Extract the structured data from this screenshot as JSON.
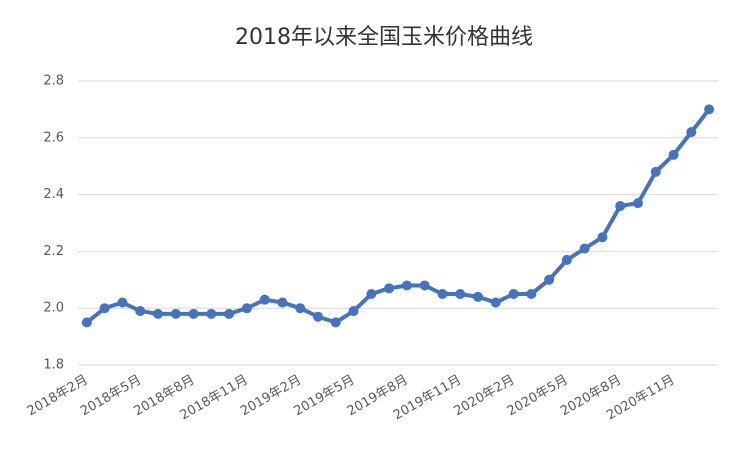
{
  "chart_data": {
    "type": "line",
    "title": "2018年以来全国玉米价格曲线",
    "categories": [
      "2018年2月",
      null,
      null,
      "2018年5月",
      null,
      null,
      "2018年8月",
      null,
      null,
      "2018年11月",
      null,
      null,
      "2019年2月",
      null,
      null,
      "2019年5月",
      null,
      null,
      "2019年8月",
      null,
      null,
      "2019年11月",
      null,
      null,
      "2020年2月",
      null,
      null,
      "2020年5月",
      null,
      null,
      "2020年8月",
      null,
      null,
      "2020年11月",
      null,
      null
    ],
    "series": [
      {
        "name": "全国玉米价格",
        "color": "#4472c4",
        "values": [
          1.95,
          2.0,
          2.02,
          1.99,
          1.98,
          1.98,
          1.98,
          1.98,
          1.98,
          2.0,
          2.03,
          2.02,
          2.0,
          1.97,
          1.95,
          1.99,
          2.05,
          2.07,
          2.08,
          2.08,
          2.05,
          2.05,
          2.04,
          2.02,
          2.05,
          2.05,
          2.1,
          2.17,
          2.21,
          2.25,
          2.36,
          2.37,
          2.48,
          2.54,
          2.62,
          2.7
        ]
      }
    ],
    "ylim": [
      1.8,
      2.8
    ],
    "yticks": [
      1.8,
      {
        "value": 2,
        "label": "2.0"
      },
      2.2,
      2.4,
      2.6,
      2.8
    ],
    "grid": true,
    "legend": false
  }
}
